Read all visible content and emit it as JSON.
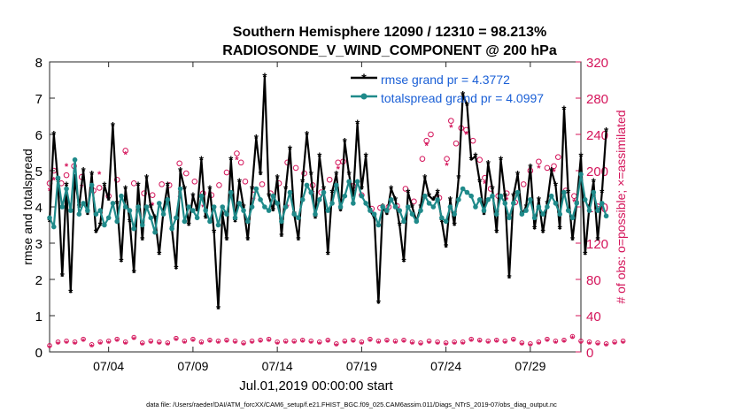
{
  "chart_data": {
    "type": "line",
    "title_line1": "Southern Hemisphere 12090 / 12310 = 98.213%",
    "title_line2": "RADIOSONDE_V_WIND_COMPONENT @ 200 hPa",
    "xlabel": "Jul.01,2019 00:00:00 start",
    "ylabel_left": "rmse and totalspread",
    "ylabel_right": "# of obs: o=possible; ×=assimilated",
    "footer": "data file: /Users/raeder/DAI/ATM_forcXX/CAM6_setup/f.e21.FHIST_BGC.f09_025.CAM6assim.011/Diags_NTrS_2019-07/obs_diag_output.nc",
    "xlim": [
      0.5,
      32.0
    ],
    "ylim_left": [
      0,
      8
    ],
    "ylim_right": [
      0,
      320
    ],
    "x_ticks": [
      {
        "value": 4,
        "label": "07/04"
      },
      {
        "value": 9,
        "label": "07/09"
      },
      {
        "value": 14,
        "label": "07/14"
      },
      {
        "value": 19,
        "label": "07/19"
      },
      {
        "value": 24,
        "label": "07/24"
      },
      {
        "value": 29,
        "label": "07/29"
      }
    ],
    "y_ticks_left": [
      "0",
      "1",
      "2",
      "3",
      "4",
      "5",
      "6",
      "7",
      "8"
    ],
    "y_ticks_right": [
      "0",
      "40",
      "80",
      "120",
      "160",
      "200",
      "240",
      "280",
      "320"
    ],
    "legend": {
      "position": "top-right",
      "entries": [
        "rmse grand pr = 4.3772",
        "totalspread grand pr = 4.0997"
      ]
    },
    "colors": {
      "rmse": "#000000",
      "spread": "#1f8a8a",
      "obs": "#d4145a",
      "legend_text": "#1a5fd6"
    },
    "x_start": 0.5,
    "x_step": 0.25,
    "series": [
      {
        "name": "rmse",
        "values": [
          3.6,
          6.0,
          4.7,
          2.1,
          4.6,
          1.65,
          4.8,
          4.0,
          5.0,
          3.8,
          4.9,
          3.3,
          3.5,
          4.6,
          4.2,
          6.25,
          4.1,
          2.5,
          4.5,
          3.6,
          2.2,
          4.6,
          3.1,
          4.8,
          4.0,
          3.7,
          2.7,
          3.9,
          4.6,
          3.4,
          2.3,
          5.0,
          4.5,
          3.5,
          4.3,
          3.9,
          5.3,
          3.7,
          4.5,
          3.3,
          1.2,
          3.8,
          3.1,
          5.3,
          3.6,
          4.7,
          4.0,
          3.1,
          4.5,
          5.9,
          4.9,
          7.6,
          4.3,
          3.9,
          4.8,
          3.2,
          4.5,
          5.6,
          3.8,
          3.1,
          4.7,
          6.0,
          4.9,
          3.7,
          5.4,
          4.5,
          2.7,
          4.4,
          4.9,
          3.9,
          5.8,
          4.9,
          4.3,
          6.3,
          4.5,
          5.4,
          3.9,
          3.7,
          1.35,
          4.0,
          3.8,
          4.5,
          4.2,
          3.5,
          2.5,
          4.4,
          4.0,
          3.6,
          4.0,
          4.8,
          4.3,
          4.2,
          4.4,
          3.6,
          2.9,
          4.2,
          3.5,
          4.8,
          7.1,
          6.8,
          5.3,
          5.4,
          4.7,
          3.8,
          5.2,
          4.5,
          3.3,
          5.3,
          4.3,
          2.05,
          4.3,
          4.9,
          3.8,
          4.0,
          5.1,
          3.4,
          4.2,
          3.3,
          4.1,
          5.0,
          4.6,
          3.4,
          6.7,
          4.4,
          3.1,
          4.1,
          5.4,
          2.7,
          4.0,
          4.7,
          3.1,
          4.4,
          6.1
        ]
      },
      {
        "name": "totalspread",
        "values": [
          3.7,
          3.45,
          4.8,
          4.0,
          4.5,
          3.9,
          5.3,
          3.8,
          4.1,
          3.9,
          4.6,
          3.8,
          3.9,
          3.5,
          3.7,
          4.1,
          3.6,
          4.3,
          4.0,
          3.9,
          3.4,
          4.0,
          3.5,
          4.0,
          3.7,
          3.3,
          4.1,
          3.8,
          4.2,
          3.4,
          3.7,
          4.5,
          3.6,
          4.0,
          3.9,
          3.7,
          4.3,
          3.9,
          3.6,
          4.0,
          3.5,
          4.0,
          3.8,
          4.4,
          3.7,
          4.1,
          3.9,
          3.6,
          4.0,
          4.5,
          4.2,
          4.0,
          3.9,
          4.3,
          4.1,
          3.6,
          4.0,
          4.4,
          3.8,
          3.7,
          4.2,
          4.6,
          4.4,
          3.8,
          4.2,
          4.4,
          3.9,
          4.1,
          4.6,
          4.0,
          4.3,
          4.7,
          4.1,
          4.7,
          4.3,
          4.1,
          3.9,
          3.8,
          3.5,
          4.0,
          3.9,
          4.2,
          4.0,
          3.9,
          3.6,
          4.0,
          3.8,
          3.6,
          3.9,
          4.3,
          4.1,
          4.0,
          4.2,
          3.7,
          3.6,
          4.0,
          3.8,
          4.2,
          4.5,
          4.4,
          4.3,
          4.0,
          4.2,
          3.9,
          4.2,
          4.3,
          3.8,
          4.3,
          4.1,
          3.7,
          4.1,
          4.4,
          3.8,
          3.9,
          4.2,
          3.7,
          4.0,
          3.8,
          4.0,
          4.3,
          4.1,
          3.8,
          4.4,
          3.9,
          3.7,
          4.1,
          4.9,
          4.2,
          3.9,
          4.4,
          3.9,
          4.1,
          3.75
        ]
      }
    ],
    "obs_possible_high": [
      {
        "x": 0.5,
        "y": 186
      },
      {
        "x": 0.75,
        "y": 200
      },
      {
        "x": 1.2,
        "y": 186
      },
      {
        "x": 1.5,
        "y": 195
      },
      {
        "x": 1.95,
        "y": 205
      },
      {
        "x": 2.4,
        "y": 193
      },
      {
        "x": 3.1,
        "y": 178
      },
      {
        "x": 3.45,
        "y": 181
      },
      {
        "x": 4.0,
        "y": 172
      },
      {
        "x": 4.5,
        "y": 190
      },
      {
        "x": 5.0,
        "y": 222
      },
      {
        "x": 5.5,
        "y": 186
      },
      {
        "x": 6.1,
        "y": 175
      },
      {
        "x": 6.6,
        "y": 173
      },
      {
        "x": 7.15,
        "y": 185
      },
      {
        "x": 7.6,
        "y": 184
      },
      {
        "x": 8.2,
        "y": 208
      },
      {
        "x": 8.6,
        "y": 197
      },
      {
        "x": 9.1,
        "y": 188
      },
      {
        "x": 9.6,
        "y": 175
      },
      {
        "x": 10.1,
        "y": 173
      },
      {
        "x": 10.55,
        "y": 184
      },
      {
        "x": 11.0,
        "y": 198
      },
      {
        "x": 11.6,
        "y": 219
      },
      {
        "x": 11.85,
        "y": 209
      },
      {
        "x": 12.1,
        "y": 188
      },
      {
        "x": 12.6,
        "y": 179
      },
      {
        "x": 13.1,
        "y": 185
      },
      {
        "x": 13.6,
        "y": 175
      },
      {
        "x": 14.1,
        "y": 186
      },
      {
        "x": 14.6,
        "y": 209
      },
      {
        "x": 15.1,
        "y": 203
      },
      {
        "x": 15.6,
        "y": 197
      },
      {
        "x": 16.1,
        "y": 184
      },
      {
        "x": 16.6,
        "y": 176
      },
      {
        "x": 17.1,
        "y": 190
      },
      {
        "x": 17.6,
        "y": 209
      },
      {
        "x": 17.9,
        "y": 210
      },
      {
        "x": 18.5,
        "y": 183
      },
      {
        "x": 19.0,
        "y": 173
      },
      {
        "x": 19.6,
        "y": 158
      },
      {
        "x": 20.1,
        "y": 159
      },
      {
        "x": 20.6,
        "y": 160
      },
      {
        "x": 21.1,
        "y": 161
      },
      {
        "x": 21.6,
        "y": 180
      },
      {
        "x": 22.1,
        "y": 166
      },
      {
        "x": 22.6,
        "y": 213
      },
      {
        "x": 22.85,
        "y": 233
      },
      {
        "x": 23.1,
        "y": 240
      },
      {
        "x": 23.6,
        "y": 170
      },
      {
        "x": 24.05,
        "y": 213
      },
      {
        "x": 24.3,
        "y": 255
      },
      {
        "x": 24.6,
        "y": 230
      },
      {
        "x": 24.9,
        "y": 247
      },
      {
        "x": 25.2,
        "y": 245
      },
      {
        "x": 25.6,
        "y": 233
      },
      {
        "x": 26.0,
        "y": 212
      },
      {
        "x": 26.3,
        "y": 192
      },
      {
        "x": 26.65,
        "y": 180
      },
      {
        "x": 27.1,
        "y": 172
      },
      {
        "x": 27.6,
        "y": 175
      },
      {
        "x": 28.1,
        "y": 165
      },
      {
        "x": 28.6,
        "y": 185
      },
      {
        "x": 29.0,
        "y": 200
      },
      {
        "x": 29.5,
        "y": 210
      },
      {
        "x": 30.0,
        "y": 203
      },
      {
        "x": 30.4,
        "y": 205
      },
      {
        "x": 30.65,
        "y": 215
      },
      {
        "x": 31.1,
        "y": 178
      },
      {
        "x": 31.6,
        "y": 172
      }
    ],
    "obs_assimilated_high": [
      {
        "x": 0.5,
        "y": 178
      },
      {
        "x": 0.75,
        "y": 190
      },
      {
        "x": 1.5,
        "y": 205
      },
      {
        "x": 2.4,
        "y": 182
      },
      {
        "x": 3.45,
        "y": 196
      },
      {
        "x": 5.0,
        "y": 218
      },
      {
        "x": 6.6,
        "y": 162
      },
      {
        "x": 8.2,
        "y": 170
      },
      {
        "x": 9.6,
        "y": 160
      },
      {
        "x": 11.6,
        "y": 212
      },
      {
        "x": 12.6,
        "y": 168
      },
      {
        "x": 14.6,
        "y": 160
      },
      {
        "x": 16.1,
        "y": 175
      },
      {
        "x": 17.6,
        "y": 202
      },
      {
        "x": 18.5,
        "y": 176
      },
      {
        "x": 19.6,
        "y": 153
      },
      {
        "x": 21.1,
        "y": 158
      },
      {
        "x": 22.85,
        "y": 228
      },
      {
        "x": 24.05,
        "y": 206
      },
      {
        "x": 24.3,
        "y": 248
      },
      {
        "x": 25.2,
        "y": 240
      },
      {
        "x": 26.3,
        "y": 186
      },
      {
        "x": 27.6,
        "y": 168
      },
      {
        "x": 29.5,
        "y": 203
      },
      {
        "x": 30.4,
        "y": 199
      },
      {
        "x": 31.6,
        "y": 166
      }
    ],
    "obs_low_possible": [
      7,
      8,
      11,
      8,
      12,
      10,
      11,
      9,
      14,
      10,
      8,
      13,
      11,
      10,
      12,
      9,
      14,
      12,
      11,
      13,
      16,
      11,
      10,
      14,
      12,
      9,
      11,
      13,
      10,
      12,
      15,
      11,
      12,
      10,
      14,
      12,
      11,
      9,
      13,
      11,
      12,
      10,
      13,
      11,
      12,
      14,
      10,
      9,
      12,
      11,
      13,
      10,
      14,
      12,
      11,
      13,
      12,
      17,
      12,
      11,
      13,
      10,
      12,
      14,
      11,
      12,
      13,
      10,
      9,
      14,
      12,
      11,
      13,
      10,
      11,
      12,
      14,
      15,
      12,
      11,
      13,
      10,
      12,
      11,
      13,
      9,
      11,
      12,
      10,
      13,
      12,
      14,
      11,
      12,
      10,
      13,
      11,
      12,
      11,
      13,
      14,
      20,
      13,
      12,
      12,
      11,
      13,
      10,
      12,
      11,
      14,
      12,
      10,
      13,
      9,
      12,
      11,
      13,
      14,
      11,
      12,
      10,
      13,
      11,
      17,
      14,
      12,
      13,
      11,
      12,
      10,
      13,
      9,
      12,
      11,
      10,
      12,
      2
    ],
    "obs_low_assimilated": [
      5,
      6,
      9,
      6,
      10,
      8,
      9,
      7,
      12,
      8,
      6,
      11,
      9,
      8,
      10,
      7,
      12,
      10,
      9,
      11,
      14,
      9,
      8,
      12,
      10,
      7,
      9,
      11,
      8,
      10,
      13,
      9,
      10,
      8,
      12,
      10,
      9,
      7,
      11,
      9,
      10,
      8,
      11,
      9,
      10,
      12,
      8,
      7,
      10,
      9,
      11,
      8,
      12,
      10,
      9,
      11,
      10,
      15,
      10,
      9,
      11,
      8,
      10,
      12,
      9,
      10,
      11,
      8,
      7,
      12,
      10,
      9,
      11,
      8,
      9,
      10,
      12,
      13,
      10,
      9,
      11,
      8,
      10,
      9,
      11,
      7,
      9,
      10,
      8,
      11,
      10,
      12,
      9,
      10,
      8,
      11,
      9,
      10,
      9,
      11,
      12,
      18,
      11,
      10,
      10,
      9,
      11,
      8,
      10,
      9,
      12,
      10,
      8,
      11,
      7,
      10,
      9,
      11,
      12,
      9,
      10,
      8,
      11,
      9,
      15,
      12,
      10,
      11,
      9,
      10,
      8,
      11,
      7,
      10,
      9,
      8,
      10,
      0
    ]
  }
}
